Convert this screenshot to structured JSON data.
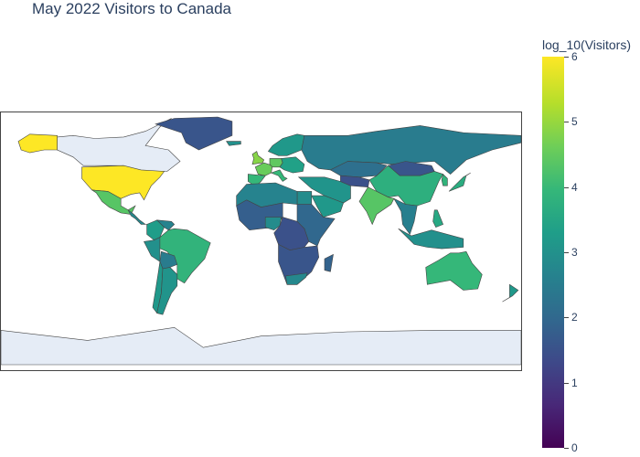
{
  "title": "May 2022 Visitors to Canada",
  "colorbar": {
    "title": "log_10(Visitors)",
    "ticks": [
      "0",
      "1",
      "2",
      "3",
      "4",
      "5",
      "6"
    ],
    "colorscale": [
      "#440154",
      "#482878",
      "#3e4989",
      "#31688e",
      "#26828e",
      "#1f9e89",
      "#35b779",
      "#6ece58",
      "#b5de2b",
      "#fde725"
    ]
  },
  "colors": {
    "land_nodata": "#e5ecf6",
    "border": "#444444"
  },
  "chart_data": {
    "type": "choropleth",
    "projection": "equirectangular",
    "title": "May 2022 Visitors to Canada",
    "value_label": "log_10(Visitors)",
    "zlim": [
      0,
      6
    ],
    "regions": [
      {
        "name": "United States",
        "log10_visitors": 6.0
      },
      {
        "name": "Mexico",
        "log10_visitors": 4.4
      },
      {
        "name": "United Kingdom",
        "log10_visitors": 4.9
      },
      {
        "name": "France",
        "log10_visitors": 4.6
      },
      {
        "name": "Germany",
        "log10_visitors": 4.5
      },
      {
        "name": "India",
        "log10_visitors": 4.4
      },
      {
        "name": "China",
        "log10_visitors": 3.8
      },
      {
        "name": "Australia",
        "log10_visitors": 4.0
      },
      {
        "name": "Brazil",
        "log10_visitors": 3.9
      },
      {
        "name": "Russia",
        "log10_visitors": 2.5
      },
      {
        "name": "Greenland",
        "log10_visitors": 1.6
      },
      {
        "name": "Argentina",
        "log10_visitors": 3.1
      },
      {
        "name": "Colombia",
        "log10_visitors": 3.3
      },
      {
        "name": "Peru",
        "log10_visitors": 3.0
      },
      {
        "name": "South Africa",
        "log10_visitors": 2.8
      },
      {
        "name": "Nigeria",
        "log10_visitors": 2.9
      },
      {
        "name": "Egypt",
        "log10_visitors": 2.9
      },
      {
        "name": "Saudi Arabia",
        "log10_visitors": 3.2
      },
      {
        "name": "Japan",
        "log10_visitors": 3.7
      },
      {
        "name": "Indonesia",
        "log10_visitors": 3.0
      },
      {
        "name": "Kazakhstan",
        "log10_visitors": 2.2
      },
      {
        "name": "Mongolia",
        "log10_visitors": 1.6
      },
      {
        "name": "Canada",
        "log10_visitors": null
      }
    ]
  }
}
